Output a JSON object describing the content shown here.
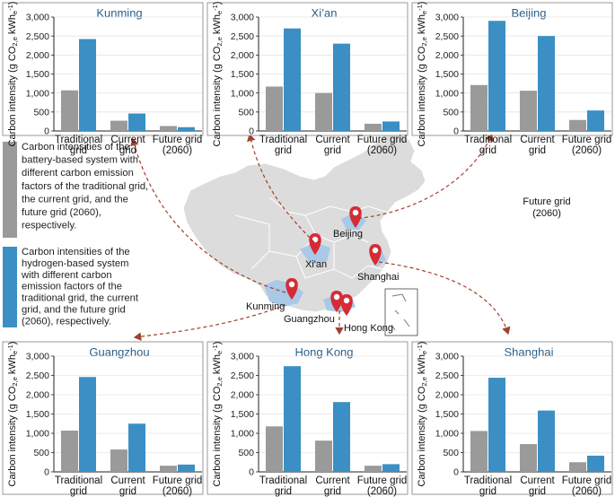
{
  "colors": {
    "battery": "#9a9a9a",
    "hydrogen": "#3b8fc4",
    "panel_border": "#9a9a9a",
    "title": "#2b5f8a",
    "arrow": "#a0412c",
    "pin": "#d62b35",
    "map_fill": "#dcdcdc",
    "map_stroke": "#ffffff",
    "highlight": "#a9c9e6"
  },
  "y_axis": {
    "label_main": "Carbon intensity (g CO",
    "label_sub": "2,e",
    "label_unit": " kWh",
    "label_unit_sub": "e",
    "label_unit_sup": "-1",
    "label_close": ")",
    "ticks": [
      "0",
      "500",
      "1,000",
      "1,500",
      "2,000",
      "2,500",
      "3,000"
    ]
  },
  "categories": [
    {
      "line1": "Traditional",
      "line2": "grid"
    },
    {
      "line1": "Current",
      "line2": "grid"
    },
    {
      "line1": "Future grid",
      "line2": "(2060)"
    }
  ],
  "legend": {
    "battery_lines": [
      "Carbon intensities of the",
      "battery-based system with",
      "different carbon emission",
      "factors of the traditional grid,",
      "the current grid, and the",
      "future grid (2060),",
      "respectively."
    ],
    "hydrogen_lines": [
      "Carbon intensities of the",
      "hydrogen-based system",
      "with different carbon",
      "emission factors of the",
      "traditional grid, the current",
      "grid, and the future grid",
      "(2060), respectively."
    ]
  },
  "future_grid_note": {
    "line1": "Future grid",
    "line2": "(2060)"
  },
  "map_labels": {
    "beijing": "Beijing",
    "xian": "Xi'an",
    "shanghai": "Shanghai",
    "kunming": "Kunming",
    "guangzhou": "Guangzhou",
    "hongkong": "Hong Kong"
  },
  "chart_data": [
    {
      "type": "bar",
      "title": "Kunming",
      "ylim": [
        0,
        3000
      ],
      "categories": [
        "Traditional grid",
        "Current grid",
        "Future grid (2060)"
      ],
      "series": [
        {
          "values": [
            1070,
            270,
            130
          ]
        },
        {
          "values": [
            2420,
            460,
            100
          ]
        }
      ]
    },
    {
      "type": "bar",
      "title": "Xi’an",
      "ylim": [
        0,
        3000
      ],
      "categories": [
        "Traditional grid",
        "Current grid",
        "Future grid (2060)"
      ],
      "series": [
        {
          "values": [
            1170,
            1000,
            190
          ]
        },
        {
          "values": [
            2700,
            2300,
            250
          ]
        }
      ]
    },
    {
      "type": "bar",
      "title": "Beijing",
      "ylim": [
        0,
        3000
      ],
      "categories": [
        "Traditional grid",
        "Current grid",
        "Future grid (2060)"
      ],
      "series": [
        {
          "values": [
            1210,
            1060,
            290
          ]
        },
        {
          "values": [
            2900,
            2500,
            540
          ]
        }
      ]
    },
    {
      "type": "bar",
      "title": "Guangzhou",
      "ylim": [
        0,
        3000
      ],
      "categories": [
        "Traditional grid",
        "Current grid",
        "Future grid (2060)"
      ],
      "series": [
        {
          "values": [
            1070,
            580,
            160
          ]
        },
        {
          "values": [
            2460,
            1250,
            190
          ]
        }
      ]
    },
    {
      "type": "bar",
      "title": "Hong Kong",
      "ylim": [
        0,
        3000
      ],
      "categories": [
        "Traditional grid",
        "Current grid",
        "Future grid (2060)"
      ],
      "series": [
        {
          "values": [
            1180,
            810,
            160
          ]
        },
        {
          "values": [
            2740,
            1810,
            200
          ]
        }
      ]
    },
    {
      "type": "bar",
      "title": "Shanghai",
      "ylim": [
        0,
        3000
      ],
      "categories": [
        "Traditional grid",
        "Current grid",
        "Future grid (2060)"
      ],
      "series": [
        {
          "values": [
            1060,
            720,
            250
          ]
        },
        {
          "values": [
            2440,
            1590,
            420
          ]
        }
      ]
    }
  ]
}
